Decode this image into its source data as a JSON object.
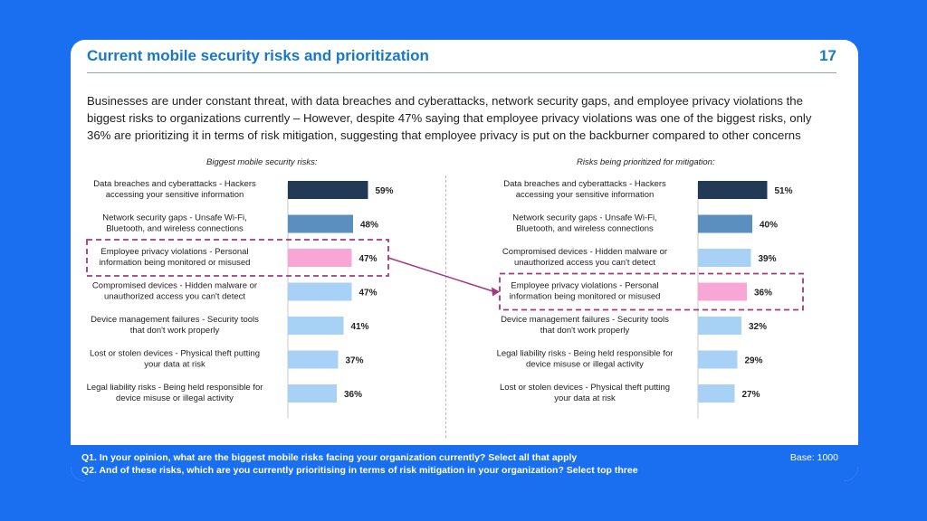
{
  "header": {
    "title": "Current mobile security risks and prioritization",
    "page_number": "17"
  },
  "intro_text": "Businesses are under constant threat, with data breaches and cyberattacks, network security gaps, and employee privacy violations the biggest risks to organizations currently – However, despite 47% saying that employee privacy violations was one of the biggest risks, only 36% are prioritizing it in terms of risk mitigation, suggesting that employee privacy is put on the backburner compared to other concerns",
  "footer": {
    "q1": "Q1.  In your opinion, what are the biggest mobile risks facing your organization currently?  Select all that apply",
    "q2": "Q2.  And of these risks, which are you currently prioritising in terms of risk mitigation in your organization? Select top three",
    "base": "Base: 1000"
  },
  "colors": {
    "dark": "#233a56",
    "mid": "#5b8fc0",
    "light": "#a8d2f5",
    "highlight": "#f7a6d5",
    "dashed_box": "#a4397e",
    "arrow": "#a4397e"
  },
  "chart_data": [
    {
      "type": "bar",
      "title": "Biggest mobile security risks:",
      "categories": [
        [
          "Data breaches and cyberattacks - Hackers",
          "accessing your sensitive information"
        ],
        [
          "Network security gaps - Unsafe Wi-Fi,",
          "Bluetooth, and wireless connections"
        ],
        [
          "Employee privacy violations - Personal",
          "information being monitored or misused"
        ],
        [
          "Compromised devices - Hidden malware or",
          "unauthorized access you can't detect"
        ],
        [
          "Device management failures - Security tools",
          "that don't work properly"
        ],
        [
          "Lost or stolen devices - Physical theft putting",
          "your data at risk"
        ],
        [
          "Legal liability risks - Being held responsible for",
          "device misuse or illegal activity"
        ]
      ],
      "values": [
        59,
        48,
        47,
        47,
        41,
        37,
        36
      ],
      "value_labels": [
        "59%",
        "48%",
        "47%",
        "47%",
        "41%",
        "37%",
        "36%"
      ],
      "bar_colors": [
        "dark",
        "mid",
        "highlight",
        "light",
        "light",
        "light",
        "light"
      ],
      "highlight_index": 2
    },
    {
      "type": "bar",
      "title": "Risks being prioritized for mitigation:",
      "categories": [
        [
          "Data breaches and cyberattacks - Hackers",
          "accessing your sensitive information"
        ],
        [
          "Network security gaps - Unsafe Wi-Fi,",
          "Bluetooth, and wireless connections"
        ],
        [
          "Compromised devices - Hidden malware or",
          "unauthorized access you can't detect"
        ],
        [
          "Employee privacy violations - Personal",
          "information being monitored or misused"
        ],
        [
          "Device management failures - Security tools",
          "that don't work properly"
        ],
        [
          "Legal liability risks - Being held responsible for",
          "device misuse or illegal activity"
        ],
        [
          "Lost or stolen devices - Physical theft putting",
          "your data at risk"
        ]
      ],
      "values": [
        51,
        40,
        39,
        36,
        32,
        29,
        27
      ],
      "value_labels": [
        "51%",
        "40%",
        "39%",
        "36%",
        "32%",
        "29%",
        "27%"
      ],
      "bar_colors": [
        "dark",
        "mid",
        "light",
        "highlight",
        "light",
        "light",
        "light"
      ],
      "highlight_index": 3
    }
  ]
}
